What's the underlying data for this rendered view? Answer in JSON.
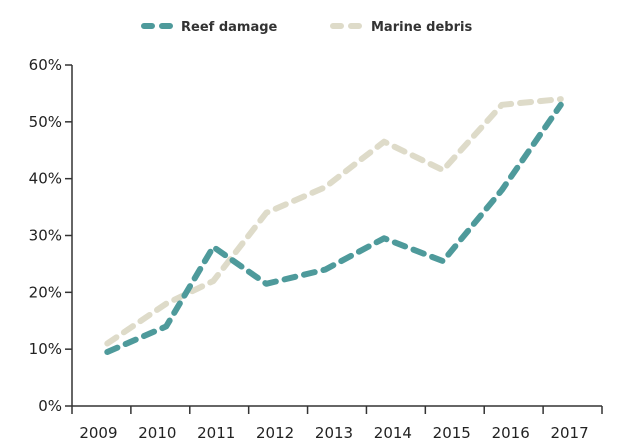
{
  "chart_data": {
    "type": "line",
    "title": "",
    "xlabel": "",
    "ylabel": "",
    "x": [
      2009,
      2010,
      2011,
      2012,
      2013,
      2014,
      2015,
      2016,
      2017
    ],
    "x_tick_labels": [
      "2009",
      "2010",
      "2011",
      "2012",
      "2013",
      "2014",
      "2015",
      "2016",
      "2017"
    ],
    "y_tick_labels": [
      "0%",
      "10%",
      "20%",
      "30%",
      "40%",
      "50%",
      "60%"
    ],
    "ylim": [
      0,
      60
    ],
    "grid": false,
    "legend_position": "top",
    "series": [
      {
        "name": "Reef damage",
        "color": "#4e9a9b",
        "points": [
          [
            2009.1,
            9.5
          ],
          [
            2010.1,
            14
          ],
          [
            2010.9,
            28
          ],
          [
            2011.8,
            21.5
          ],
          [
            2012.8,
            24
          ],
          [
            2013.8,
            29.5
          ],
          [
            2014.8,
            25.5
          ],
          [
            2015.8,
            38
          ],
          [
            2016.8,
            53
          ]
        ]
      },
      {
        "name": "Marine debris",
        "color": "#dedbc9",
        "points": [
          [
            2009.1,
            11
          ],
          [
            2010.1,
            18
          ],
          [
            2010.9,
            22
          ],
          [
            2011.8,
            34
          ],
          [
            2012.8,
            38.5
          ],
          [
            2013.8,
            46.5
          ],
          [
            2014.8,
            41.5
          ],
          [
            2015.8,
            53
          ],
          [
            2016.8,
            54
          ]
        ]
      }
    ]
  }
}
